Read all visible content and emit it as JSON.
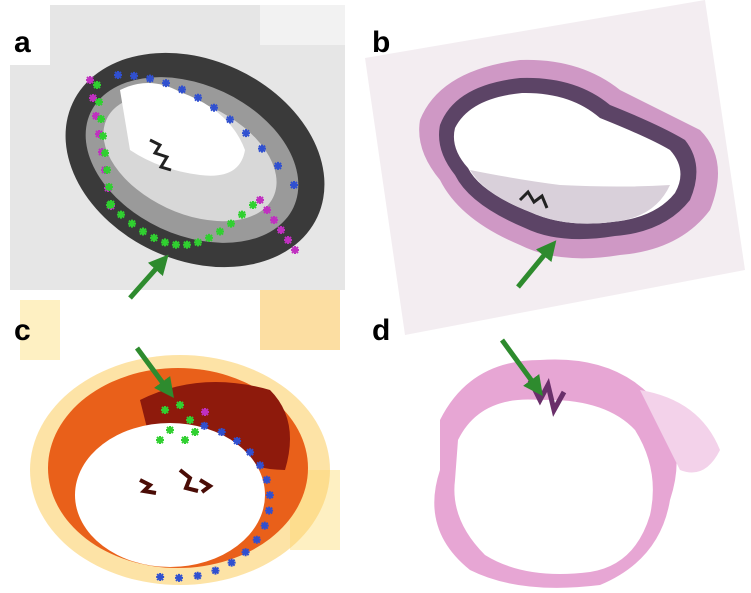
{
  "panels": {
    "a": "a",
    "b": "b",
    "c": "c",
    "d": "d"
  }
}
